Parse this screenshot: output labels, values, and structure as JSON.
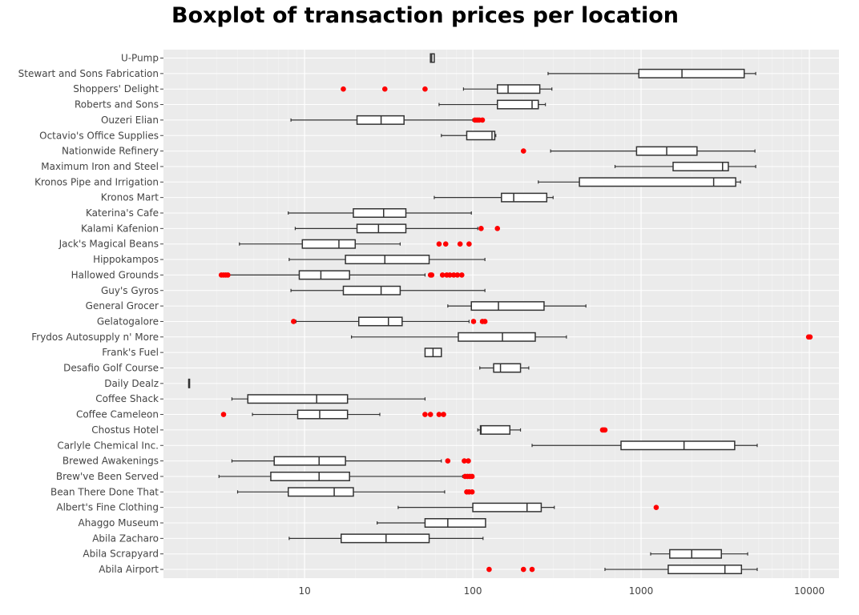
{
  "chart_data": {
    "type": "boxplot",
    "title": "Boxplot of transaction prices per location",
    "xlabel": "",
    "ylabel": "",
    "x_scale": "log",
    "xlim": [
      1.45,
      15000
    ],
    "x_ticks": [
      10,
      100,
      1000,
      10000
    ],
    "x_tick_labels": [
      "10",
      "100",
      "1000",
      "10000"
    ],
    "grid": true,
    "outlier_color": "#ff0000",
    "box_stroke_color": "#333333",
    "plot_background": "#ebebeb",
    "categories": [
      "U-Pump",
      "Stewart and Sons Fabrication",
      "Shoppers' Delight",
      "Roberts and Sons",
      "Ouzeri Elian",
      "Octavio's Office Supplies",
      "Nationwide Refinery",
      "Maximum Iron and Steel",
      "Kronos Pipe and Irrigation",
      "Kronos Mart",
      "Katerina's Cafe",
      "Kalami Kafenion",
      "Jack's Magical Beans",
      "Hippokampos",
      "Hallowed Grounds",
      "Guy's Gyros",
      "General Grocer",
      "Gelatogalore",
      "Frydos Autosupply n' More",
      "Frank's Fuel",
      "Desafio Golf Course",
      "Daily Dealz",
      "Coffee Shack",
      "Coffee Cameleon",
      "Chostus Hotel",
      "Carlyle Chemical Inc.",
      "Brewed Awakenings",
      "Brew've Been Served",
      "Bean There Done That",
      "Albert's Fine Clothing",
      "Ahaggo Museum",
      "Abila Zacharo",
      "Abila Scrapyard",
      "Abila Airport"
    ],
    "boxes": [
      {
        "min": 56,
        "q1": 56,
        "median": 57,
        "q3": 59,
        "max": 59,
        "outliers": []
      },
      {
        "min": 280,
        "q1": 970,
        "median": 1750,
        "q3": 4100,
        "max": 4800,
        "outliers": []
      },
      {
        "min": 88,
        "q1": 140,
        "median": 162,
        "q3": 250,
        "max": 295,
        "outliers": [
          17,
          30,
          52
        ]
      },
      {
        "min": 63,
        "q1": 140,
        "median": 225,
        "q3": 245,
        "max": 270,
        "outliers": []
      },
      {
        "min": 8.3,
        "q1": 20.5,
        "median": 28.5,
        "q3": 39,
        "max": 100,
        "outliers": [
          103,
          106,
          109,
          114
        ]
      },
      {
        "min": 65,
        "q1": 92,
        "median": 130,
        "q3": 135,
        "max": 137,
        "outliers": []
      },
      {
        "min": 290,
        "q1": 940,
        "median": 1420,
        "q3": 2150,
        "max": 4750,
        "outliers": [
          200
        ]
      },
      {
        "min": 700,
        "q1": 1550,
        "median": 3050,
        "q3": 3300,
        "max": 4800,
        "outliers": []
      },
      {
        "min": 245,
        "q1": 430,
        "median": 2700,
        "q3": 3650,
        "max": 3900,
        "outliers": []
      },
      {
        "min": 59,
        "q1": 148,
        "median": 175,
        "q3": 275,
        "max": 300,
        "outliers": []
      },
      {
        "min": 8,
        "q1": 19.5,
        "median": 29.5,
        "q3": 40,
        "max": 98,
        "outliers": []
      },
      {
        "min": 8.8,
        "q1": 20.5,
        "median": 27.5,
        "q3": 40,
        "max": 107,
        "outliers": [
          112,
          140
        ]
      },
      {
        "min": 4.1,
        "q1": 9.7,
        "median": 16,
        "q3": 20,
        "max": 37,
        "outliers": [
          63,
          69,
          84,
          95
        ]
      },
      {
        "min": 8.1,
        "q1": 17.5,
        "median": 30,
        "q3": 55,
        "max": 118,
        "outliers": []
      },
      {
        "min": 3.5,
        "q1": 9.3,
        "median": 12.5,
        "q3": 18.5,
        "max": 52,
        "outliers": [
          3.2,
          3.3,
          3.4,
          3.5,
          56,
          57,
          66,
          70,
          73,
          77,
          81,
          86
        ]
      },
      {
        "min": 8.3,
        "q1": 17,
        "median": 28.5,
        "q3": 37,
        "max": 118,
        "outliers": []
      },
      {
        "min": 71,
        "q1": 98,
        "median": 142,
        "q3": 265,
        "max": 470,
        "outliers": []
      },
      {
        "min": 8.9,
        "q1": 21,
        "median": 31.5,
        "q3": 38,
        "max": 95,
        "outliers": [
          8.6,
          101,
          114,
          118
        ]
      },
      {
        "min": 19,
        "q1": 82,
        "median": 150,
        "q3": 235,
        "max": 360,
        "outliers": [
          9900,
          10100
        ]
      },
      {
        "min": 52,
        "q1": 52,
        "median": 58,
        "q3": 65,
        "max": 65,
        "outliers": []
      },
      {
        "min": 110,
        "q1": 133,
        "median": 146,
        "q3": 192,
        "max": 215,
        "outliers": []
      },
      {
        "min": 2.05,
        "q1": 2.05,
        "median": 2.05,
        "q3": 2.05,
        "max": 2.05,
        "outliers": []
      },
      {
        "min": 3.7,
        "q1": 4.6,
        "median": 11.8,
        "q3": 18,
        "max": 52,
        "outliers": []
      },
      {
        "min": 4.9,
        "q1": 9.1,
        "median": 12.3,
        "q3": 18,
        "max": 28,
        "outliers": [
          3.3,
          52,
          56,
          63,
          67
        ]
      },
      {
        "min": 107,
        "q1": 111,
        "median": 112,
        "q3": 166,
        "max": 192,
        "outliers": [
          590,
          600,
          610
        ]
      },
      {
        "min": 225,
        "q1": 760,
        "median": 1800,
        "q3": 3600,
        "max": 4900,
        "outliers": []
      },
      {
        "min": 3.7,
        "q1": 6.6,
        "median": 12.2,
        "q3": 17.5,
        "max": 65,
        "outliers": [
          71,
          89,
          94
        ]
      },
      {
        "min": 3.1,
        "q1": 6.3,
        "median": 12.2,
        "q3": 18.5,
        "max": 87,
        "outliers": [
          90,
          93,
          96,
          99
        ]
      },
      {
        "min": 4,
        "q1": 8,
        "median": 15,
        "q3": 19.5,
        "max": 68,
        "outliers": [
          92,
          95,
          99
        ]
      },
      {
        "min": 36,
        "q1": 100,
        "median": 210,
        "q3": 255,
        "max": 305,
        "outliers": [
          1230
        ]
      },
      {
        "min": 27,
        "q1": 52,
        "median": 71,
        "q3": 119,
        "max": 119,
        "outliers": []
      },
      {
        "min": 8.1,
        "q1": 16.5,
        "median": 30.5,
        "q3": 55,
        "max": 115,
        "outliers": []
      },
      {
        "min": 1140,
        "q1": 1480,
        "median": 2000,
        "q3": 3000,
        "max": 4300,
        "outliers": []
      },
      {
        "min": 610,
        "q1": 1450,
        "median": 3150,
        "q3": 3950,
        "max": 4900,
        "outliers": [
          125,
          200,
          225
        ]
      }
    ]
  }
}
